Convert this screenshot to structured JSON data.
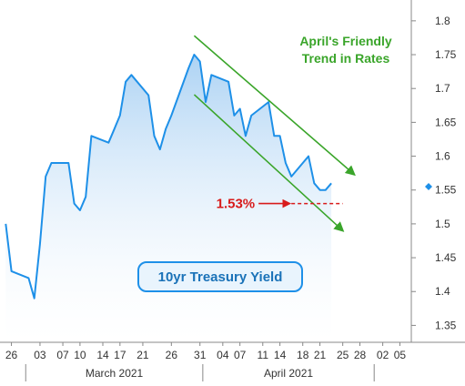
{
  "chart_data": {
    "type": "line",
    "series": [
      {
        "name": "10yr Treasury Yield",
        "color": "#1e90e8",
        "x": [
          "2021-02-25",
          "2021-02-26",
          "2021-03-01",
          "2021-03-02",
          "2021-03-03",
          "2021-03-04",
          "2021-03-05",
          "2021-03-08",
          "2021-03-09",
          "2021-03-10",
          "2021-03-11",
          "2021-03-12",
          "2021-03-15",
          "2021-03-16",
          "2021-03-17",
          "2021-03-18",
          "2021-03-19",
          "2021-03-22",
          "2021-03-23",
          "2021-03-24",
          "2021-03-25",
          "2021-03-26",
          "2021-03-29",
          "2021-03-30",
          "2021-03-31",
          "2021-04-01",
          "2021-04-02",
          "2021-04-05",
          "2021-04-06",
          "2021-04-07",
          "2021-04-08",
          "2021-04-09",
          "2021-04-12",
          "2021-04-13",
          "2021-04-14",
          "2021-04-15",
          "2021-04-16",
          "2021-04-19",
          "2021-04-20",
          "2021-04-21",
          "2021-04-22",
          "2021-04-23"
        ],
        "values": [
          1.5,
          1.43,
          1.42,
          1.39,
          1.47,
          1.57,
          1.59,
          1.59,
          1.53,
          1.52,
          1.54,
          1.63,
          1.62,
          1.64,
          1.66,
          1.71,
          1.72,
          1.69,
          1.63,
          1.61,
          1.64,
          1.66,
          1.73,
          1.75,
          1.74,
          1.68,
          1.72,
          1.71,
          1.66,
          1.67,
          1.63,
          1.66,
          1.68,
          1.63,
          1.63,
          1.59,
          1.57,
          1.6,
          1.56,
          1.55,
          1.55,
          1.56
        ]
      }
    ],
    "x_ticks": [
      "26",
      "03",
      "07",
      "10",
      "14",
      "17",
      "21",
      "26",
      "31",
      "04",
      "07",
      "11",
      "14",
      "18",
      "21",
      "25",
      "28",
      "02",
      "05"
    ],
    "x_tick_dates": [
      "2021-02-26",
      "2021-03-03",
      "2021-03-07",
      "2021-03-10",
      "2021-03-14",
      "2021-03-17",
      "2021-03-21",
      "2021-03-26",
      "2021-03-31",
      "2021-04-04",
      "2021-04-07",
      "2021-04-11",
      "2021-04-14",
      "2021-04-18",
      "2021-04-21",
      "2021-04-25",
      "2021-04-28",
      "2021-05-02",
      "2021-05-05"
    ],
    "months": [
      {
        "label": "March 2021",
        "start": "2021-03-01",
        "end": "2021-03-31"
      },
      {
        "label": "April 2021",
        "start": "2021-04-01",
        "end": "2021-04-30"
      }
    ],
    "xlim": [
      "2021-02-24",
      "2021-05-07"
    ],
    "y_ticks": [
      "1.8",
      "1.75",
      "1.7",
      "1.65",
      "1.6",
      "1.55",
      "1.5",
      "1.45",
      "1.4",
      "1.35"
    ],
    "ylim": [
      1.325,
      1.82
    ],
    "y_axis_side": "right",
    "grid": false,
    "current_value_marker": 1.555,
    "annotations": {
      "title_line1": "April's Friendly",
      "title_line2": "Trend in Rates",
      "level_label": "1.53%",
      "level_value": 1.53,
      "level_start": "2021-04-16",
      "level_end": "2021-04-25",
      "series_label": "10yr Treasury Yield",
      "trend_upper": {
        "start": "2021-03-30",
        "start_value": 1.778,
        "end": "2021-04-27",
        "end_value": 1.573
      },
      "trend_lower": {
        "start": "2021-03-30",
        "start_value": 1.691,
        "end": "2021-04-25",
        "end_value": 1.49
      }
    },
    "colors": {
      "line": "#1e90e8",
      "fill_top": "#a8d0f3",
      "trend": "#3aa52a",
      "marker": "#d81b1b",
      "label_border": "#1e90e8",
      "label_fill": "#e9f4fd",
      "axis": "#888888"
    }
  }
}
